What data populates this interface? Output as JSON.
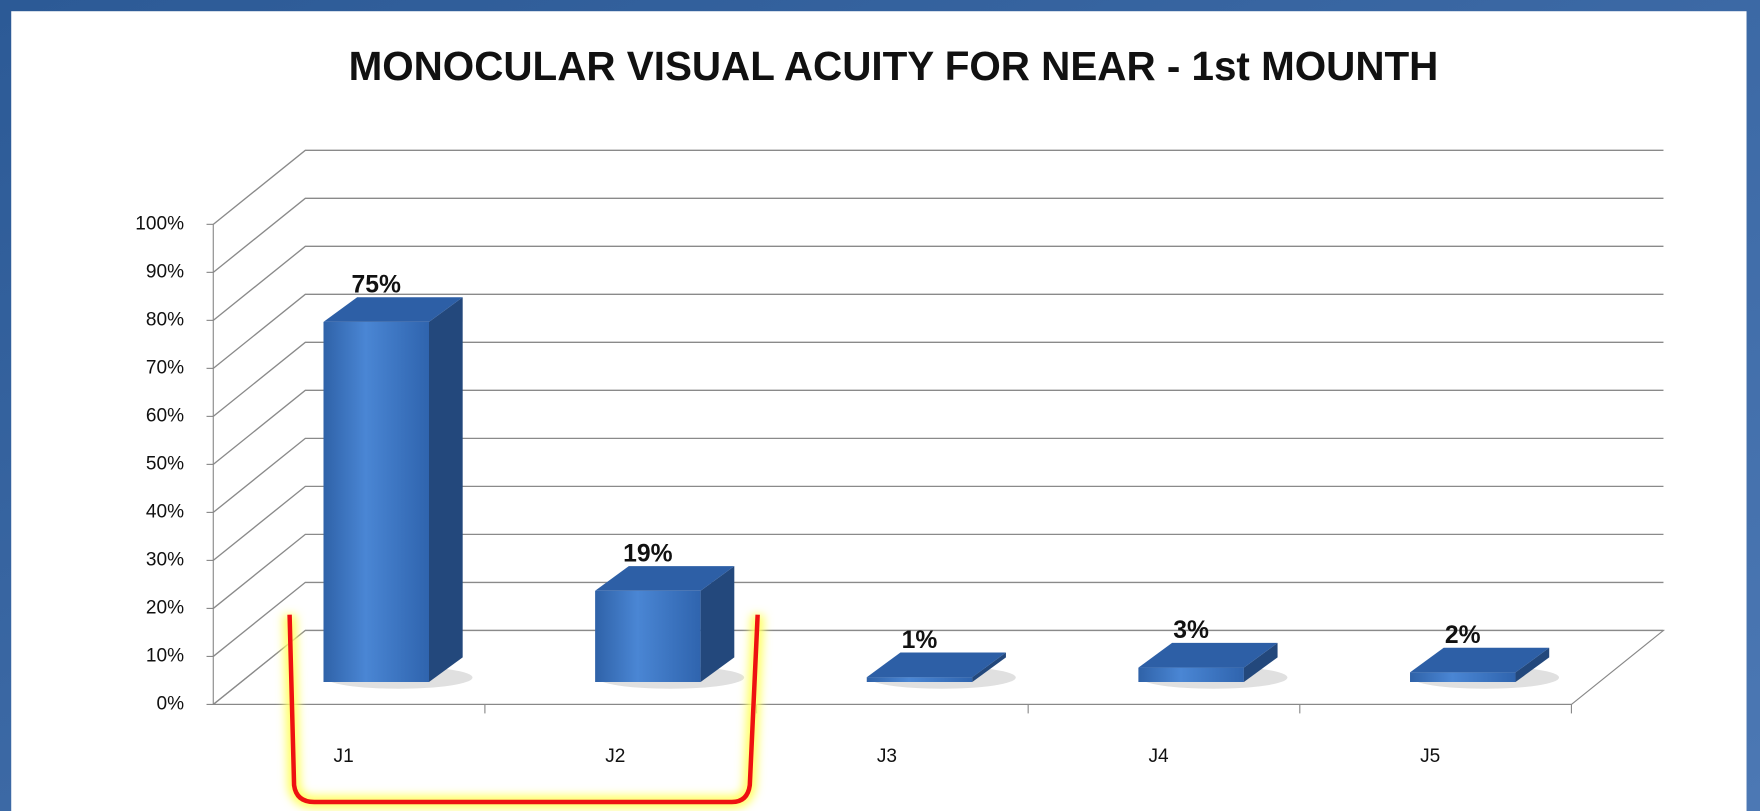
{
  "chart_data": {
    "type": "bar3d",
    "title": "MONOCULAR VISUAL ACUITY FOR NEAR - 1st MOUNTH",
    "categories": [
      "J1",
      "J2",
      "J3",
      "J4",
      "J5"
    ],
    "values": [
      75,
      19,
      1,
      3,
      2
    ],
    "value_labels": [
      "75%",
      "19%",
      "1%",
      "3%",
      "2%"
    ],
    "color": "#3a74c4",
    "ylim": [
      0,
      100
    ],
    "yticks": [
      {
        "value": 0,
        "label": "0%"
      },
      {
        "value": 10,
        "label": "10%"
      },
      {
        "value": 20,
        "label": "20%"
      },
      {
        "value": 30,
        "label": "30%"
      },
      {
        "value": 40,
        "label": "40%"
      },
      {
        "value": 50,
        "label": "50%"
      },
      {
        "value": 60,
        "label": "60%"
      },
      {
        "value": 70,
        "label": "70%"
      },
      {
        "value": 80,
        "label": "80%"
      },
      {
        "value": 90,
        "label": "90%"
      },
      {
        "value": 100,
        "label": "100%"
      }
    ],
    "grid": true
  }
}
